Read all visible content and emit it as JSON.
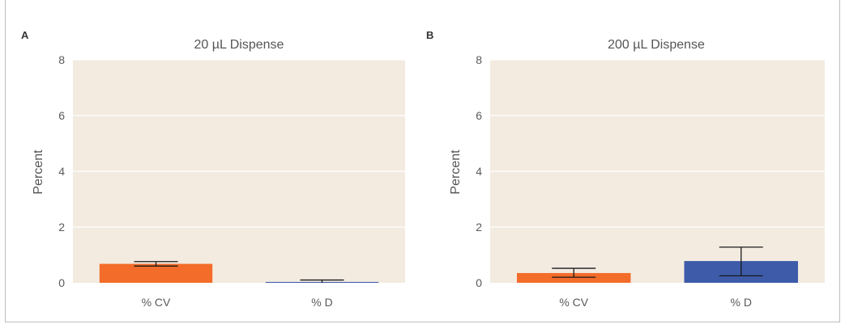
{
  "chart_data": [
    {
      "panel": "A",
      "type": "bar",
      "title": "20 µL Dispense",
      "ylabel": "Percent",
      "xlabel": "",
      "categories": [
        "% CV",
        "% D"
      ],
      "values": [
        0.68,
        0.03
      ],
      "error_low": [
        0.6,
        0.0
      ],
      "error_high": [
        0.76,
        0.1
      ],
      "ylim": [
        0,
        8
      ],
      "yticks": [
        0,
        2,
        4,
        6,
        8
      ],
      "grid": true
    },
    {
      "panel": "B",
      "type": "bar",
      "title": "200 µL Dispense",
      "ylabel": "Percent",
      "xlabel": "",
      "categories": [
        "% CV",
        "% D"
      ],
      "values": [
        0.35,
        0.78
      ],
      "error_low": [
        0.2,
        0.25
      ],
      "error_high": [
        0.52,
        1.28
      ],
      "ylim": [
        0,
        8
      ],
      "yticks": [
        0,
        2,
        4,
        6,
        8
      ],
      "grid": true
    }
  ],
  "colors": {
    "plot_background": "#f3ebe0",
    "gridline": "#ffffff",
    "bar_cv": "#f36c2a",
    "bar_d": "#3d5ba9",
    "error_bar": "#1a1a1a"
  }
}
